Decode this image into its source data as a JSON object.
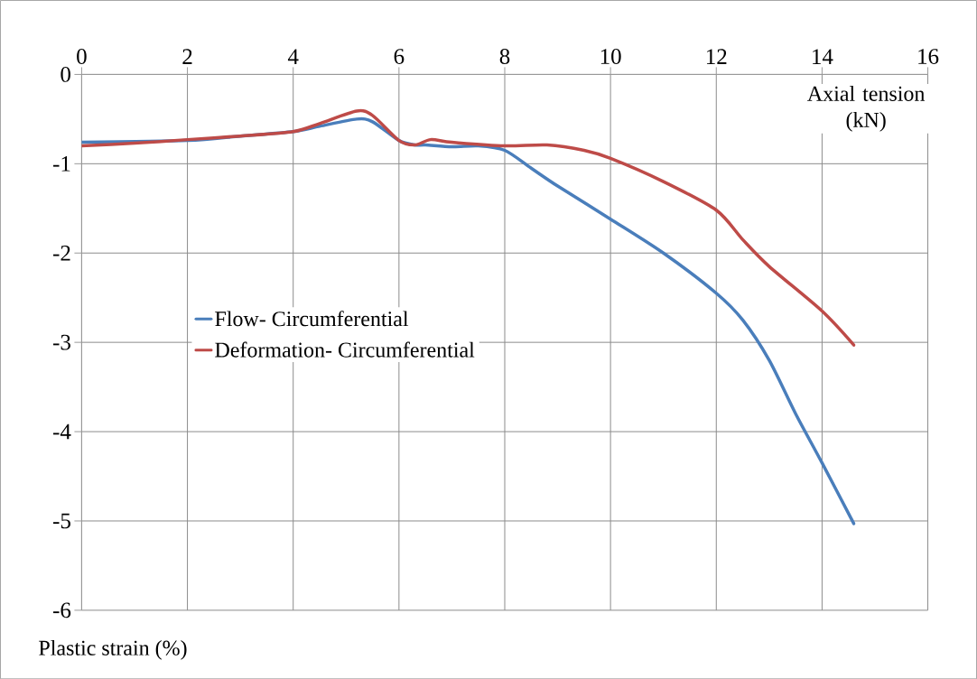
{
  "chart_data": {
    "type": "line",
    "xlabel": "Axial tension (kN)",
    "ylabel": "Plastic strain (%)",
    "xlim": [
      0,
      16
    ],
    "ylim": [
      -6,
      0
    ],
    "xticks": [
      0,
      2,
      4,
      6,
      8,
      10,
      12,
      14,
      16
    ],
    "yticks": [
      -6,
      -5,
      -4,
      -3,
      -2,
      -1,
      0
    ],
    "grid": true,
    "legend": "left",
    "marker": "none",
    "line_style": "solid",
    "series": [
      {
        "name": "Flow- Circumferential",
        "color": "#4a7ebb",
        "x": [
          0,
          1,
          2,
          3,
          4,
          4.5,
          5.2,
          5.5,
          6,
          6.3,
          6.5,
          7,
          7.5,
          8,
          8.5,
          9,
          10,
          11,
          12,
          12.5,
          13,
          13.5,
          14,
          14.6
        ],
        "values": [
          -0.76,
          null,
          -0.74,
          -0.69,
          -0.64,
          -0.58,
          -0.5,
          -0.53,
          -0.74,
          -0.79,
          -0.79,
          -0.81,
          -0.8,
          -0.85,
          -1.05,
          -1.25,
          -1.62,
          -2.0,
          -2.45,
          -2.75,
          -3.2,
          -3.8,
          -4.35,
          -5.03
        ]
      },
      {
        "name": "Deformation- Circumferential",
        "color": "#be4b48",
        "x": [
          0,
          1,
          2,
          3,
          4,
          4.5,
          5.2,
          5.5,
          6,
          6.3,
          6.6,
          7,
          8,
          8.8,
          9.5,
          10,
          11,
          12,
          12.5,
          13,
          14,
          14.6
        ],
        "values": [
          -0.8,
          -0.77,
          -0.73,
          -0.69,
          -0.64,
          -0.55,
          -0.41,
          -0.46,
          -0.74,
          -0.79,
          -0.73,
          -0.76,
          -0.8,
          -0.79,
          -0.85,
          -0.94,
          -1.2,
          -1.52,
          -1.85,
          -2.15,
          -2.65,
          -3.03
        ]
      }
    ]
  }
}
